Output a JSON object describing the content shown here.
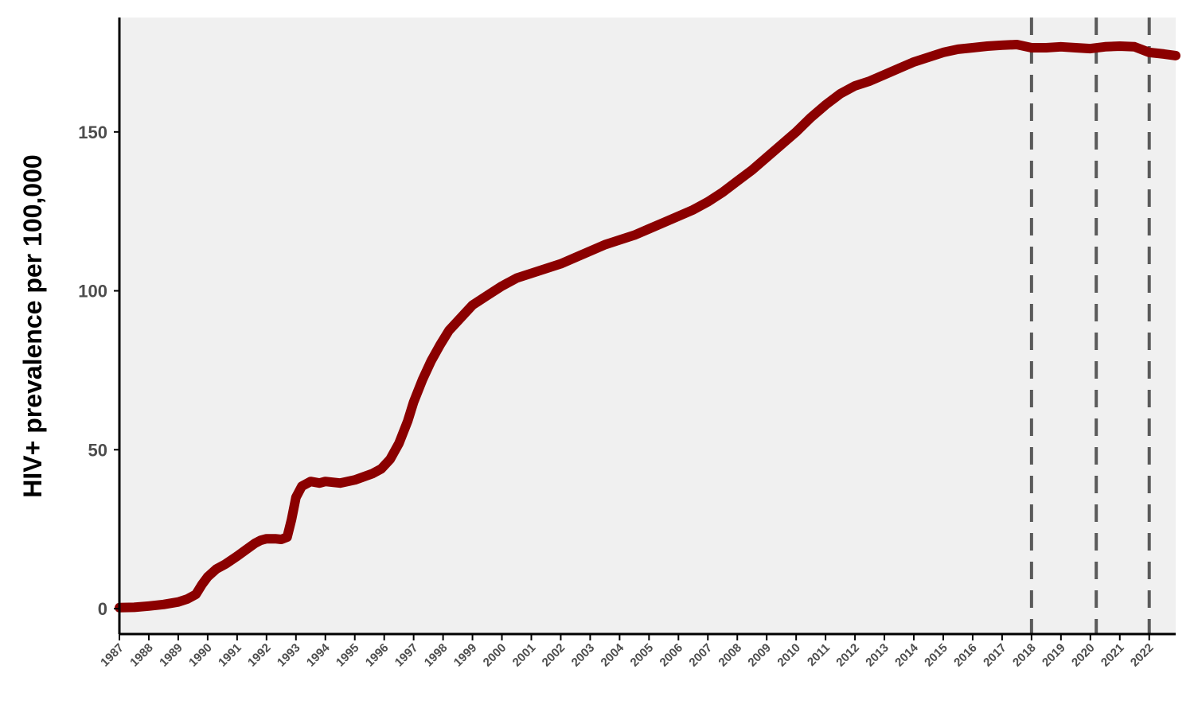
{
  "chart_data": {
    "type": "line",
    "title": "",
    "xlabel": "",
    "ylabel": "HIV+ prevalence per 100,000",
    "xlim": [
      1987,
      2022.9
    ],
    "ylim": [
      -8,
      186
    ],
    "yticks": [
      0,
      50,
      100,
      150
    ],
    "ytick_labels": [
      "0",
      "50",
      "100",
      "150"
    ],
    "xticks": [
      1987,
      1988,
      1989,
      1990,
      1991,
      1992,
      1993,
      1994,
      1995,
      1996,
      1997,
      1998,
      1999,
      2000,
      2001,
      2002,
      2003,
      2004,
      2005,
      2006,
      2007,
      2008,
      2009,
      2010,
      2011,
      2012,
      2013,
      2014,
      2015,
      2016,
      2017,
      2018,
      2019,
      2020,
      2021,
      2022
    ],
    "xtick_labels": [
      "1987",
      "1988",
      "1989",
      "1990",
      "1991",
      "1992",
      "1993",
      "1994",
      "1995",
      "1996",
      "1997",
      "1998",
      "1999",
      "2000",
      "2001",
      "2002",
      "2003",
      "2004",
      "2005",
      "2006",
      "2007",
      "2008",
      "2009",
      "2010",
      "2011",
      "2012",
      "2013",
      "2014",
      "2015",
      "2016",
      "2017",
      "2018",
      "2019",
      "2020",
      "2021",
      "2022"
    ],
    "grid": false,
    "background_color": "#f0f0f0",
    "series": [
      {
        "color": "#8b0000",
        "x": [
          1987.0,
          1987.5,
          1988.0,
          1988.5,
          1989.0,
          1989.3,
          1989.6,
          1989.8,
          1990.0,
          1990.3,
          1990.6,
          1991.0,
          1991.3,
          1991.6,
          1991.8,
          1992.0,
          1992.3,
          1992.5,
          1992.7,
          1992.85,
          1993.0,
          1993.2,
          1993.5,
          1993.8,
          1994.0,
          1994.5,
          1995.0,
          1995.3,
          1995.6,
          1995.9,
          1996.2,
          1996.5,
          1996.8,
          1997.0,
          1997.3,
          1997.6,
          1997.9,
          1998.2,
          1998.5,
          1998.8,
          1999.0,
          1999.5,
          2000.0,
          2000.5,
          2001.0,
          2001.5,
          2002.0,
          2002.5,
          2003.0,
          2003.5,
          2004.0,
          2004.5,
          2005.0,
          2005.5,
          2006.0,
          2006.5,
          2007.0,
          2007.5,
          2008.0,
          2008.5,
          2009.0,
          2009.5,
          2010.0,
          2010.5,
          2011.0,
          2011.5,
          2012.0,
          2012.5,
          2013.0,
          2013.5,
          2014.0,
          2014.5,
          2015.0,
          2015.5,
          2016.0,
          2016.5,
          2017.0,
          2017.5,
          2018.0,
          2018.5,
          2019.0,
          2019.5,
          2020.0,
          2020.5,
          2021.0,
          2021.5,
          2022.0,
          2022.5,
          2022.9
        ],
        "y": [
          0.3,
          0.4,
          0.8,
          1.3,
          2.1,
          3.0,
          4.5,
          7.5,
          10.0,
          12.5,
          14.0,
          16.5,
          18.5,
          20.5,
          21.5,
          22.0,
          22.0,
          21.8,
          22.5,
          28.0,
          35.0,
          38.5,
          40.0,
          39.5,
          40.0,
          39.5,
          40.5,
          41.5,
          42.5,
          44.0,
          47.0,
          52.0,
          59.0,
          65.0,
          72.0,
          78.0,
          83.0,
          87.5,
          90.5,
          93.5,
          95.5,
          98.5,
          101.5,
          104.0,
          105.5,
          107.0,
          108.5,
          110.5,
          112.5,
          114.5,
          116.0,
          117.5,
          119.5,
          121.5,
          123.5,
          125.5,
          128.0,
          131.0,
          134.5,
          138.0,
          142.0,
          146.0,
          150.0,
          154.5,
          158.5,
          162.0,
          164.5,
          166.0,
          168.0,
          170.0,
          172.0,
          173.5,
          175.0,
          176.0,
          176.5,
          177.0,
          177.3,
          177.5,
          176.5,
          176.5,
          176.8,
          176.5,
          176.2,
          176.8,
          177.0,
          176.8,
          175.0,
          174.5,
          174.0
        ]
      }
    ],
    "vlines": {
      "x": [
        2018.0,
        2020.2,
        2022.0
      ],
      "color": "#5a5a5a",
      "style": "dashed"
    }
  }
}
